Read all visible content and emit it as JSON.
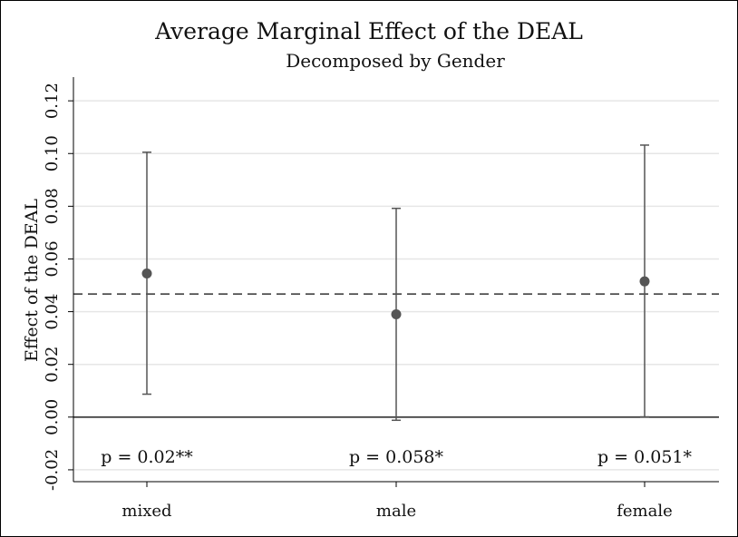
{
  "chart_data": {
    "type": "scatter",
    "title": "Average Marginal Effect of the DEAL",
    "subtitle": "Decomposed by Gender",
    "xlabel": "",
    "ylabel": "Effect of the DEAL",
    "categories": [
      "mixed",
      "male",
      "female"
    ],
    "estimates": [
      0.0545,
      0.039,
      0.0515
    ],
    "ci_lower": [
      0.0087,
      -0.0012,
      0.0001
    ],
    "ci_upper": [
      0.1005,
      0.0792,
      0.1032
    ],
    "annotations": [
      "p = 0.02**",
      "p = 0.058*",
      "p = 0.051*"
    ],
    "reference_line_dashed": 0.0467,
    "reference_line_solid": 0.0,
    "yticks": [
      -0.02,
      0.0,
      0.02,
      0.04,
      0.06,
      0.08,
      0.1,
      0.12
    ],
    "ytick_labels": [
      "-0.02",
      "0.00",
      "0.02",
      "0.04",
      "0.06",
      "0.08",
      "0.10",
      "0.12"
    ],
    "ylim": [
      -0.0245,
      0.129
    ],
    "grid": true,
    "colors": {
      "marker": "#555555",
      "ci": "#555555",
      "grid": "#e6e6e6",
      "dashed_line": "#333333",
      "axis": "#000000"
    }
  }
}
